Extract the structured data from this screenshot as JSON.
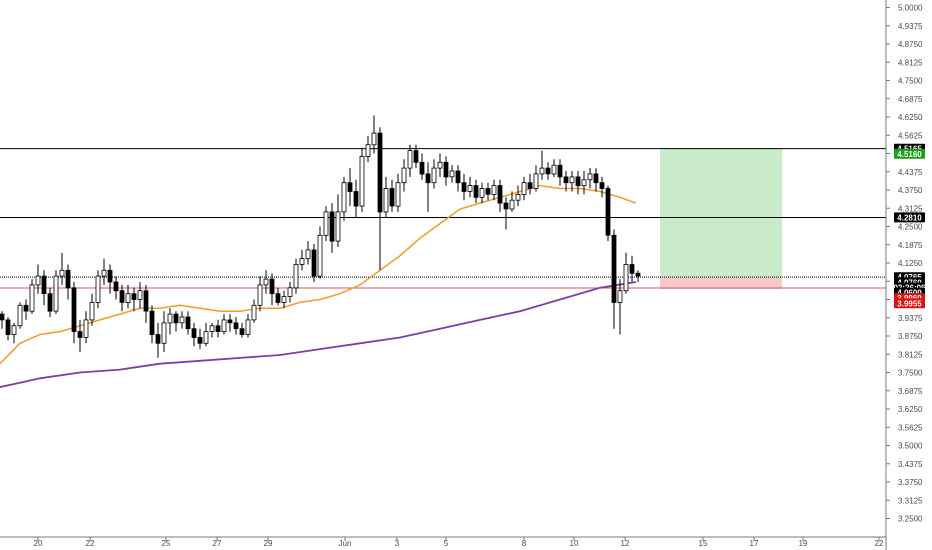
{
  "chart_data": {
    "type": "candlestick",
    "ylim": [
      3.2,
      5.03
    ],
    "y_ticks": [
      "5.0000",
      "4.9375",
      "4.8750",
      "4.8125",
      "4.7500",
      "4.6875",
      "4.6250",
      "4.5625",
      "4.5000",
      "4.4375",
      "4.3750",
      "4.3125",
      "4.2500",
      "4.1875",
      "4.1250",
      "4.0625",
      "4.0000",
      "3.9375",
      "3.8750",
      "3.8125",
      "3.7500",
      "3.6875",
      "3.6250",
      "3.5625",
      "3.5000",
      "3.4375",
      "3.3750",
      "3.3125",
      "3.2500"
    ],
    "x_ticks": [
      "20",
      "22",
      "25",
      "27",
      "29",
      "Jun",
      "3",
      "5",
      "8",
      "10",
      "12",
      "15",
      "17",
      "19",
      "22"
    ],
    "grid": false,
    "colors": {
      "up": "#ffffff",
      "down": "#000000",
      "outline": "#000000",
      "ma_fast": "#f59a23",
      "ma_slow": "#7b3fa8",
      "level": "#000000",
      "stop": "#e05555",
      "profit_zone": "#c9ebc9",
      "loss_zone": "#f7c9cc"
    },
    "horizontal_levels": [
      4.5165,
      4.281,
      4.0765,
      4.0598
    ],
    "moving_average_fast": [
      [
        0,
        3.78
      ],
      [
        20,
        3.85
      ],
      [
        40,
        3.88
      ],
      [
        60,
        3.89
      ],
      [
        80,
        3.91
      ],
      [
        100,
        3.93
      ],
      [
        120,
        3.95
      ],
      [
        140,
        3.97
      ],
      [
        160,
        3.97
      ],
      [
        180,
        3.98
      ],
      [
        200,
        3.97
      ],
      [
        220,
        3.96
      ],
      [
        240,
        3.96
      ],
      [
        260,
        3.97
      ],
      [
        280,
        3.97
      ],
      [
        300,
        3.99
      ],
      [
        320,
        4.0
      ],
      [
        340,
        4.02
      ],
      [
        360,
        4.05
      ],
      [
        380,
        4.1
      ],
      [
        400,
        4.15
      ],
      [
        420,
        4.21
      ],
      [
        440,
        4.26
      ],
      [
        460,
        4.31
      ],
      [
        480,
        4.33
      ],
      [
        500,
        4.35
      ],
      [
        520,
        4.37
      ],
      [
        540,
        4.39
      ],
      [
        560,
        4.38
      ],
      [
        580,
        4.38
      ],
      [
        600,
        4.37
      ],
      [
        620,
        4.35
      ],
      [
        636,
        4.33
      ]
    ],
    "moving_average_slow": [
      [
        0,
        3.7
      ],
      [
        40,
        3.73
      ],
      [
        80,
        3.75
      ],
      [
        120,
        3.76
      ],
      [
        160,
        3.78
      ],
      [
        200,
        3.79
      ],
      [
        240,
        3.8
      ],
      [
        280,
        3.81
      ],
      [
        320,
        3.83
      ],
      [
        360,
        3.85
      ],
      [
        400,
        3.87
      ],
      [
        440,
        3.9
      ],
      [
        480,
        3.93
      ],
      [
        520,
        3.96
      ],
      [
        560,
        4.0
      ],
      [
        600,
        4.04
      ],
      [
        636,
        4.06
      ]
    ],
    "candles": [
      [
        2,
        3.95,
        3.93,
        3.96,
        3.9
      ],
      [
        8,
        3.93,
        3.88,
        3.94,
        3.86
      ],
      [
        14,
        3.88,
        3.91,
        3.92,
        3.85
      ],
      [
        20,
        3.91,
        3.98,
        3.99,
        3.9
      ],
      [
        26,
        3.98,
        3.96,
        4.0,
        3.93
      ],
      [
        32,
        3.96,
        4.05,
        4.07,
        3.95
      ],
      [
        38,
        4.05,
        4.08,
        4.12,
        4.02
      ],
      [
        44,
        4.08,
        4.02,
        4.1,
        3.98
      ],
      [
        50,
        4.02,
        3.96,
        4.04,
        3.94
      ],
      [
        56,
        3.96,
        4.08,
        4.1,
        3.95
      ],
      [
        62,
        4.08,
        4.1,
        4.16,
        4.05
      ],
      [
        68,
        4.1,
        4.04,
        4.12,
        4.0
      ],
      [
        74,
        4.04,
        3.89,
        4.06,
        3.85
      ],
      [
        80,
        3.89,
        3.87,
        3.93,
        3.82
      ],
      [
        86,
        3.87,
        3.93,
        3.96,
        3.85
      ],
      [
        92,
        3.93,
        3.99,
        4.02,
        3.91
      ],
      [
        98,
        3.99,
        4.08,
        4.1,
        3.97
      ],
      [
        104,
        4.08,
        4.1,
        4.14,
        4.05
      ],
      [
        110,
        4.1,
        4.06,
        4.12,
        4.02
      ],
      [
        116,
        4.06,
        4.03,
        4.08,
        4.0
      ],
      [
        122,
        4.03,
        3.99,
        4.05,
        3.96
      ],
      [
        128,
        3.99,
        4.02,
        4.05,
        3.97
      ],
      [
        134,
        4.02,
        4.0,
        4.04,
        3.96
      ],
      [
        140,
        4.0,
        4.03,
        4.06,
        3.97
      ],
      [
        146,
        4.03,
        3.96,
        4.05,
        3.92
      ],
      [
        152,
        3.96,
        3.88,
        3.98,
        3.85
      ],
      [
        158,
        3.88,
        3.85,
        3.92,
        3.8
      ],
      [
        164,
        3.85,
        3.92,
        3.96,
        3.82
      ],
      [
        170,
        3.92,
        3.95,
        3.97,
        3.88
      ],
      [
        176,
        3.95,
        3.92,
        3.96,
        3.89
      ],
      [
        182,
        3.92,
        3.94,
        3.96,
        3.9
      ],
      [
        188,
        3.94,
        3.9,
        3.96,
        3.88
      ],
      [
        194,
        3.9,
        3.87,
        3.92,
        3.84
      ],
      [
        200,
        3.87,
        3.85,
        3.9,
        3.83
      ],
      [
        206,
        3.85,
        3.89,
        3.92,
        3.84
      ],
      [
        212,
        3.89,
        3.91,
        3.92,
        3.87
      ],
      [
        218,
        3.91,
        3.89,
        3.93,
        3.87
      ],
      [
        224,
        3.89,
        3.93,
        3.95,
        3.88
      ],
      [
        230,
        3.93,
        3.92,
        3.95,
        3.89
      ],
      [
        236,
        3.92,
        3.9,
        3.94,
        3.88
      ],
      [
        242,
        3.9,
        3.88,
        3.92,
        3.87
      ],
      [
        248,
        3.88,
        3.93,
        3.95,
        3.87
      ],
      [
        254,
        3.93,
        3.98,
        4.0,
        3.92
      ],
      [
        260,
        3.98,
        4.05,
        4.08,
        3.96
      ],
      [
        266,
        4.05,
        4.07,
        4.1,
        4.02
      ],
      [
        272,
        4.07,
        4.02,
        4.09,
        3.98
      ],
      [
        278,
        4.02,
        3.99,
        4.04,
        3.98
      ],
      [
        284,
        3.99,
        4.01,
        4.03,
        3.97
      ],
      [
        290,
        4.01,
        4.04,
        4.06,
        3.99
      ],
      [
        296,
        4.04,
        4.12,
        4.14,
        4.02
      ],
      [
        302,
        4.12,
        4.14,
        4.17,
        4.1
      ],
      [
        308,
        4.14,
        4.17,
        4.2,
        4.12
      ],
      [
        314,
        4.17,
        4.08,
        4.19,
        4.06
      ],
      [
        320,
        4.08,
        4.22,
        4.25,
        4.07
      ],
      [
        326,
        4.22,
        4.3,
        4.32,
        4.2
      ],
      [
        332,
        4.3,
        4.2,
        4.33,
        4.16
      ],
      [
        338,
        4.2,
        4.3,
        4.36,
        4.18
      ],
      [
        344,
        4.3,
        4.4,
        4.42,
        4.27
      ],
      [
        350,
        4.4,
        4.37,
        4.45,
        4.32
      ],
      [
        356,
        4.37,
        4.32,
        4.41,
        4.28
      ],
      [
        362,
        4.32,
        4.49,
        4.52,
        4.3
      ],
      [
        368,
        4.49,
        4.53,
        4.56,
        4.47
      ],
      [
        374,
        4.53,
        4.57,
        4.63,
        4.5
      ],
      [
        380,
        4.57,
        4.3,
        4.59,
        4.1
      ],
      [
        386,
        4.3,
        4.38,
        4.42,
        4.28
      ],
      [
        392,
        4.38,
        4.32,
        4.41,
        4.3
      ],
      [
        398,
        4.32,
        4.4,
        4.43,
        4.3
      ],
      [
        404,
        4.4,
        4.45,
        4.48,
        4.37
      ],
      [
        410,
        4.45,
        4.51,
        4.53,
        4.42
      ],
      [
        416,
        4.51,
        4.47,
        4.53,
        4.45
      ],
      [
        422,
        4.47,
        4.43,
        4.5,
        4.41
      ],
      [
        428,
        4.43,
        4.4,
        4.47,
        4.3
      ],
      [
        434,
        4.4,
        4.45,
        4.48,
        4.38
      ],
      [
        440,
        4.45,
        4.47,
        4.5,
        4.42
      ],
      [
        446,
        4.47,
        4.42,
        4.49,
        4.39
      ],
      [
        452,
        4.42,
        4.44,
        4.46,
        4.4
      ],
      [
        458,
        4.44,
        4.4,
        4.46,
        4.37
      ],
      [
        464,
        4.4,
        4.37,
        4.43,
        4.34
      ],
      [
        470,
        4.37,
        4.39,
        4.42,
        4.35
      ],
      [
        476,
        4.39,
        4.35,
        4.41,
        4.33
      ],
      [
        482,
        4.35,
        4.38,
        4.4,
        4.33
      ],
      [
        488,
        4.38,
        4.36,
        4.4,
        4.34
      ],
      [
        494,
        4.36,
        4.39,
        4.41,
        4.34
      ],
      [
        500,
        4.39,
        4.33,
        4.41,
        4.3
      ],
      [
        506,
        4.33,
        4.31,
        4.35,
        4.24
      ],
      [
        512,
        4.31,
        4.34,
        4.37,
        4.3
      ],
      [
        518,
        4.34,
        4.36,
        4.39,
        4.32
      ],
      [
        524,
        4.36,
        4.4,
        4.42,
        4.34
      ],
      [
        530,
        4.4,
        4.38,
        4.43,
        4.36
      ],
      [
        536,
        4.38,
        4.43,
        4.46,
        4.37
      ],
      [
        542,
        4.43,
        4.45,
        4.51,
        4.41
      ],
      [
        548,
        4.45,
        4.43,
        4.47,
        4.41
      ],
      [
        554,
        4.43,
        4.46,
        4.48,
        4.42
      ],
      [
        560,
        4.46,
        4.42,
        4.48,
        4.39
      ],
      [
        566,
        4.42,
        4.4,
        4.44,
        4.37
      ],
      [
        572,
        4.4,
        4.42,
        4.44,
        4.37
      ],
      [
        578,
        4.42,
        4.39,
        4.44,
        4.36
      ],
      [
        584,
        4.39,
        4.41,
        4.44,
        4.36
      ],
      [
        590,
        4.41,
        4.43,
        4.45,
        4.38
      ],
      [
        596,
        4.43,
        4.4,
        4.45,
        4.37
      ],
      [
        602,
        4.4,
        4.38,
        4.42,
        4.35
      ],
      [
        608,
        4.38,
        4.22,
        4.39,
        4.2
      ],
      [
        614,
        4.22,
        3.99,
        4.24,
        3.9
      ],
      [
        620,
        3.99,
        4.03,
        4.07,
        3.88
      ],
      [
        626,
        4.03,
        4.12,
        4.16,
        4.02
      ],
      [
        632,
        4.12,
        4.09,
        4.15,
        4.06
      ],
      [
        638,
        4.09,
        4.08,
        4.1,
        4.06
      ]
    ],
    "position": {
      "entry": 4.0765,
      "target": 4.5165,
      "stop": 4.0598,
      "x_start": 660,
      "x_end": 782
    },
    "price_badges": [
      {
        "label": "4.5165",
        "bg": "#000000",
        "fg": "#ffffff",
        "price": 4.5165
      },
      {
        "label": "4.5160",
        "bg": "#1aa01a",
        "fg": "#ffffff",
        "price": 4.499
      },
      {
        "label": "4.2810",
        "bg": "#000000",
        "fg": "#ffffff",
        "price": 4.281
      },
      {
        "label": "4.0765",
        "bg": "#000000",
        "fg": "#ffffff",
        "price": 4.0765
      },
      {
        "label": "4.0760",
        "bg": "#000000",
        "fg": "#ffffff",
        "price": 4.0585
      },
      {
        "label": "02:26:06",
        "bg": "#000000",
        "fg": "#ffffff",
        "price": 4.041
      },
      {
        "label": "4.0600",
        "bg": "#000000",
        "fg": "#ffffff",
        "price": 4.0235
      },
      {
        "label": "3.9960",
        "bg": "#e01010",
        "fg": "#ffffff",
        "price": 4.0045
      },
      {
        "label": "3.9955",
        "bg": "#e01010",
        "fg": "#ffffff",
        "price": 3.987
      }
    ]
  }
}
